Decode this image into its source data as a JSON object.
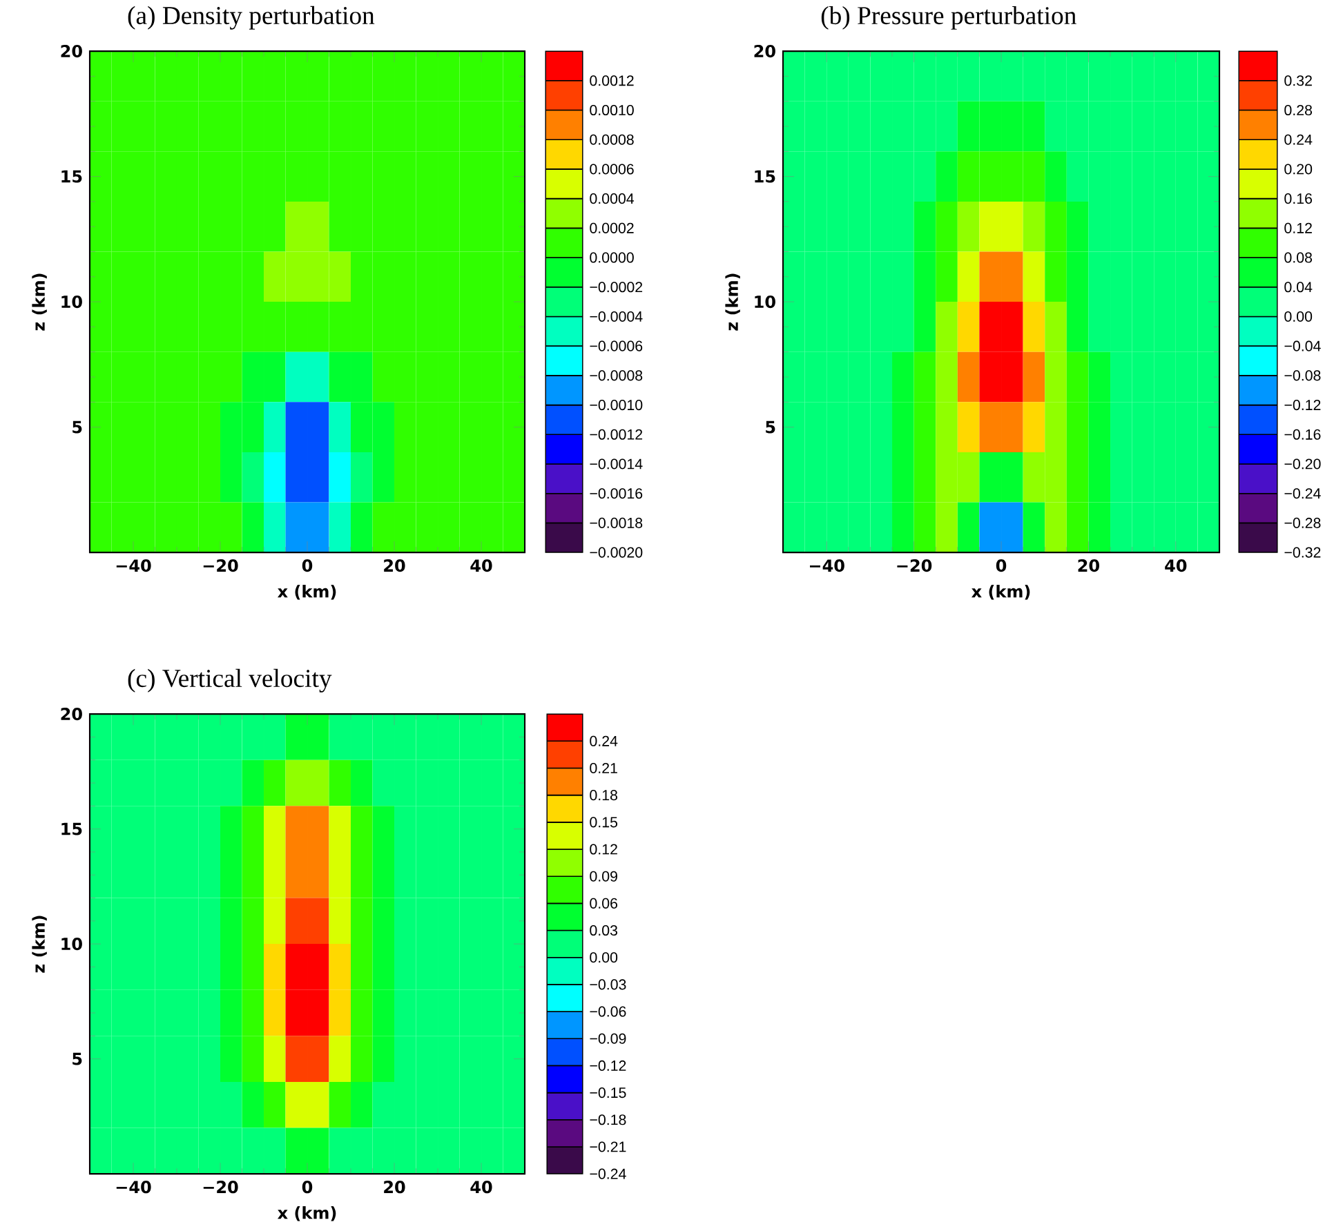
{
  "chart_data": [
    {
      "type": "heatmap",
      "title": "(a)    Density perturbation",
      "xlabel": "x (km)",
      "ylabel": "z (km)",
      "xlim": [
        -50,
        50
      ],
      "ylim": [
        0,
        20
      ],
      "xticks": [
        {
          "value": -40,
          "label": "−40"
        },
        {
          "value": -20,
          "label": "−20"
        },
        {
          "value": 0,
          "label": "0"
        },
        {
          "value": 20,
          "label": "20"
        },
        {
          "value": 40,
          "label": "40"
        }
      ],
      "yticks": [
        {
          "value": 5,
          "label": "5"
        },
        {
          "value": 10,
          "label": "10"
        },
        {
          "value": 15,
          "label": "15"
        },
        {
          "value": 20,
          "label": "20"
        }
      ],
      "clim": [
        -0.002,
        0.0014
      ],
      "cticks": [
        {
          "value": -0.002,
          "label": "−0.0020"
        },
        {
          "value": -0.0018,
          "label": "−0.0018"
        },
        {
          "value": -0.0016,
          "label": "−0.0016"
        },
        {
          "value": -0.0014,
          "label": "−0.0014"
        },
        {
          "value": -0.0012,
          "label": "−0.0012"
        },
        {
          "value": -0.001,
          "label": "−0.0010"
        },
        {
          "value": -0.0008,
          "label": "−0.0008"
        },
        {
          "value": -0.0006,
          "label": "−0.0006"
        },
        {
          "value": -0.0004,
          "label": "−0.0004"
        },
        {
          "value": -0.0002,
          "label": "−0.0002"
        },
        {
          "value": 0,
          "label": "0.0000"
        },
        {
          "value": 0.0002,
          "label": "0.0002"
        },
        {
          "value": 0.0004,
          "label": "0.0004"
        },
        {
          "value": 0.0006,
          "label": "0.0006"
        },
        {
          "value": 0.0008,
          "label": "0.0008"
        },
        {
          "value": 0.001,
          "label": "0.0010"
        },
        {
          "value": 0.0012,
          "label": "0.0012"
        }
      ],
      "colors": [
        "#3a0a4a",
        "#5a0a80",
        "#4a10c8",
        "#0000ff",
        "#0050ff",
        "#0096ff",
        "#00ffff",
        "#00ffc0",
        "#00ff78",
        "#00ff30",
        "#30ff00",
        "#90ff00",
        "#d8ff00",
        "#ffd800",
        "#ff8000",
        "#ff4000",
        "#ff0000"
      ],
      "cells": [
        [
          0.0001,
          0.0001,
          0.0001,
          0.0001,
          0.0001,
          0.0001,
          0.0001,
          0.0001,
          0.0001,
          0.0001,
          0.0001,
          0.0001,
          0.0001,
          0.0001,
          0.0001,
          0.0001,
          0.0001,
          0.0001,
          0.0001,
          0.0001
        ],
        [
          0.0001,
          0.0001,
          0.0001,
          0.0001,
          0.0001,
          0.0001,
          0.0001,
          0.0001,
          0.0001,
          0.0001,
          0.0001,
          0.0001,
          0.0001,
          0.0001,
          0.0001,
          0.0001,
          0.0001,
          0.0001,
          0.0001,
          0.0001
        ],
        [
          0.0001,
          0.0001,
          0.0001,
          0.0001,
          0.0001,
          0.0001,
          0.0001,
          0.0001,
          0.0001,
          0.0001,
          0.0001,
          0.0001,
          0.0001,
          0.0001,
          0.0001,
          0.0001,
          0.0001,
          0.0001,
          0.0001,
          0.0001
        ],
        [
          0.0001,
          0.0001,
          0.0001,
          0.0001,
          0.0001,
          0.0001,
          0.0001,
          0.0001,
          0.0001,
          0.0003,
          0.0003,
          0.0001,
          0.0001,
          0.0001,
          0.0001,
          0.0001,
          0.0001,
          0.0001,
          0.0001,
          0.0001
        ],
        [
          0.0001,
          0.0001,
          0.0001,
          0.0001,
          0.0001,
          0.0001,
          0.0001,
          0.0001,
          0.0003,
          0.0003,
          0.0003,
          0.0003,
          0.0001,
          0.0001,
          0.0001,
          0.0001,
          0.0001,
          0.0001,
          0.0001,
          0.0001
        ],
        [
          0.0001,
          0.0001,
          0.0001,
          0.0001,
          0.0001,
          0.0001,
          0.0001,
          0.0001,
          0.0001,
          0.0001,
          0.0001,
          0.0001,
          0.0001,
          0.0001,
          0.0001,
          0.0001,
          0.0001,
          0.0001,
          0.0001,
          0.0001
        ],
        [
          0.0001,
          0.0001,
          0.0001,
          0.0001,
          0.0001,
          0.0001,
          0.0001,
          -0.0001,
          -0.0001,
          -0.0005,
          -0.0005,
          -0.0001,
          -0.0001,
          0.0001,
          0.0001,
          0.0001,
          0.0001,
          0.0001,
          0.0001,
          0.0001
        ],
        [
          0.0001,
          0.0001,
          0.0001,
          0.0001,
          0.0001,
          0.0001,
          -0.0001,
          -0.0001,
          -0.0005,
          -0.0011,
          -0.0011,
          -0.0005,
          -0.0001,
          -0.0001,
          0.0001,
          0.0001,
          0.0001,
          0.0001,
          0.0001,
          0.0001
        ],
        [
          0.0001,
          0.0001,
          0.0001,
          0.0001,
          0.0001,
          0.0001,
          -0.0001,
          -0.0003,
          -0.0007,
          -0.0011,
          -0.0011,
          -0.0007,
          -0.0003,
          -0.0001,
          0.0001,
          0.0001,
          0.0001,
          0.0001,
          0.0001,
          0.0001
        ],
        [
          0.0001,
          0.0001,
          0.0001,
          0.0001,
          0.0001,
          0.0001,
          0.0001,
          -0.0001,
          -0.0005,
          -0.0009,
          -0.0009,
          -0.0005,
          -0.0001,
          0.0001,
          0.0001,
          0.0001,
          0.0001,
          0.0001,
          0.0001,
          0.0001
        ]
      ]
    },
    {
      "type": "heatmap",
      "title": "(b)    Pressure perturbation",
      "xlabel": "x (km)",
      "ylabel": "z (km)",
      "xlim": [
        -50,
        50
      ],
      "ylim": [
        0,
        20
      ],
      "xticks": [
        {
          "value": -40,
          "label": "−40"
        },
        {
          "value": -20,
          "label": "−20"
        },
        {
          "value": 0,
          "label": "0"
        },
        {
          "value": 20,
          "label": "20"
        },
        {
          "value": 40,
          "label": "40"
        }
      ],
      "yticks": [
        {
          "value": 5,
          "label": "5"
        },
        {
          "value": 10,
          "label": "10"
        },
        {
          "value": 15,
          "label": "15"
        },
        {
          "value": 20,
          "label": "20"
        }
      ],
      "clim": [
        -0.32,
        0.36
      ],
      "cticks": [
        {
          "value": -0.32,
          "label": "−0.32"
        },
        {
          "value": -0.28,
          "label": "−0.28"
        },
        {
          "value": -0.24,
          "label": "−0.24"
        },
        {
          "value": -0.2,
          "label": "−0.20"
        },
        {
          "value": -0.16,
          "label": "−0.16"
        },
        {
          "value": -0.12,
          "label": "−0.12"
        },
        {
          "value": -0.08,
          "label": "−0.08"
        },
        {
          "value": -0.04,
          "label": "−0.04"
        },
        {
          "value": 0,
          "label": "0.00"
        },
        {
          "value": 0.04,
          "label": "0.04"
        },
        {
          "value": 0.08,
          "label": "0.08"
        },
        {
          "value": 0.12,
          "label": "0.12"
        },
        {
          "value": 0.16,
          "label": "0.16"
        },
        {
          "value": 0.2,
          "label": "0.20"
        },
        {
          "value": 0.24,
          "label": "0.24"
        },
        {
          "value": 0.28,
          "label": "0.28"
        },
        {
          "value": 0.32,
          "label": "0.32"
        }
      ],
      "colors": [
        "#3a0a4a",
        "#5a0a80",
        "#4a10c8",
        "#0000ff",
        "#0050ff",
        "#0096ff",
        "#00ffff",
        "#00ffc0",
        "#00ff78",
        "#00ff30",
        "#30ff00",
        "#90ff00",
        "#d8ff00",
        "#ffd800",
        "#ff8000",
        "#ff4000",
        "#ff0000"
      ],
      "cells": [
        [
          0.02,
          0.02,
          0.02,
          0.02,
          0.02,
          0.02,
          0.02,
          0.02,
          0.02,
          0.02,
          0.02,
          0.02,
          0.02,
          0.02,
          0.02,
          0.02,
          0.02,
          0.02,
          0.02,
          0.02
        ],
        [
          0.02,
          0.02,
          0.02,
          0.02,
          0.02,
          0.02,
          0.02,
          0.02,
          0.06,
          0.06,
          0.06,
          0.06,
          0.02,
          0.02,
          0.02,
          0.02,
          0.02,
          0.02,
          0.02,
          0.02
        ],
        [
          0.02,
          0.02,
          0.02,
          0.02,
          0.02,
          0.02,
          0.02,
          0.06,
          0.1,
          0.1,
          0.1,
          0.1,
          0.06,
          0.02,
          0.02,
          0.02,
          0.02,
          0.02,
          0.02,
          0.02
        ],
        [
          0.02,
          0.02,
          0.02,
          0.02,
          0.02,
          0.02,
          0.06,
          0.1,
          0.14,
          0.18,
          0.18,
          0.14,
          0.1,
          0.06,
          0.02,
          0.02,
          0.02,
          0.02,
          0.02,
          0.02
        ],
        [
          0.02,
          0.02,
          0.02,
          0.02,
          0.02,
          0.02,
          0.06,
          0.1,
          0.18,
          0.26,
          0.26,
          0.18,
          0.1,
          0.06,
          0.02,
          0.02,
          0.02,
          0.02,
          0.02,
          0.02
        ],
        [
          0.02,
          0.02,
          0.02,
          0.02,
          0.02,
          0.02,
          0.06,
          0.14,
          0.22,
          0.34,
          0.34,
          0.22,
          0.14,
          0.06,
          0.02,
          0.02,
          0.02,
          0.02,
          0.02,
          0.02
        ],
        [
          0.02,
          0.02,
          0.02,
          0.02,
          0.02,
          0.06,
          0.1,
          0.14,
          0.26,
          0.34,
          0.34,
          0.26,
          0.14,
          0.1,
          0.06,
          0.02,
          0.02,
          0.02,
          0.02,
          0.02
        ],
        [
          0.02,
          0.02,
          0.02,
          0.02,
          0.02,
          0.06,
          0.1,
          0.14,
          0.22,
          0.26,
          0.26,
          0.22,
          0.14,
          0.1,
          0.06,
          0.02,
          0.02,
          0.02,
          0.02,
          0.02
        ],
        [
          0.02,
          0.02,
          0.02,
          0.02,
          0.02,
          0.06,
          0.1,
          0.14,
          0.14,
          0.06,
          0.06,
          0.14,
          0.14,
          0.1,
          0.06,
          0.02,
          0.02,
          0.02,
          0.02,
          0.02
        ],
        [
          0.02,
          0.02,
          0.02,
          0.02,
          0.02,
          0.06,
          0.1,
          0.14,
          0.06,
          -0.1,
          -0.1,
          0.06,
          0.14,
          0.1,
          0.06,
          0.02,
          0.02,
          0.02,
          0.02,
          0.02
        ]
      ]
    },
    {
      "type": "heatmap",
      "title": "(c)    Vertical velocity",
      "xlabel": "x (km)",
      "ylabel": "z (km)",
      "xlim": [
        -50,
        50
      ],
      "ylim": [
        0,
        20
      ],
      "xticks": [
        {
          "value": -40,
          "label": "−40"
        },
        {
          "value": -20,
          "label": "−20"
        },
        {
          "value": 0,
          "label": "0"
        },
        {
          "value": 20,
          "label": "20"
        },
        {
          "value": 40,
          "label": "40"
        }
      ],
      "yticks": [
        {
          "value": 5,
          "label": "5"
        },
        {
          "value": 10,
          "label": "10"
        },
        {
          "value": 15,
          "label": "15"
        },
        {
          "value": 20,
          "label": "20"
        }
      ],
      "clim": [
        -0.24,
        0.27
      ],
      "cticks": [
        {
          "value": -0.24,
          "label": "−0.24"
        },
        {
          "value": -0.21,
          "label": "−0.21"
        },
        {
          "value": -0.18,
          "label": "−0.18"
        },
        {
          "value": -0.15,
          "label": "−0.15"
        },
        {
          "value": -0.12,
          "label": "−0.12"
        },
        {
          "value": -0.09,
          "label": "−0.09"
        },
        {
          "value": -0.06,
          "label": "−0.06"
        },
        {
          "value": -0.03,
          "label": "−0.03"
        },
        {
          "value": 0,
          "label": "0.00"
        },
        {
          "value": 0.03,
          "label": "0.03"
        },
        {
          "value": 0.06,
          "label": "0.06"
        },
        {
          "value": 0.09,
          "label": "0.09"
        },
        {
          "value": 0.12,
          "label": "0.12"
        },
        {
          "value": 0.15,
          "label": "0.15"
        },
        {
          "value": 0.18,
          "label": "0.18"
        },
        {
          "value": 0.21,
          "label": "0.21"
        },
        {
          "value": 0.24,
          "label": "0.24"
        }
      ],
      "colors": [
        "#3a0a4a",
        "#5a0a80",
        "#4a10c8",
        "#0000ff",
        "#0050ff",
        "#0096ff",
        "#00ffff",
        "#00ffc0",
        "#00ff78",
        "#00ff30",
        "#30ff00",
        "#90ff00",
        "#d8ff00",
        "#ffd800",
        "#ff8000",
        "#ff4000",
        "#ff0000"
      ],
      "cells": [
        [
          0.015,
          0.015,
          0.015,
          0.015,
          0.015,
          0.015,
          0.015,
          0.015,
          0.015,
          0.045,
          0.045,
          0.015,
          0.015,
          0.015,
          0.015,
          0.015,
          0.015,
          0.015,
          0.015,
          0.015
        ],
        [
          0.015,
          0.015,
          0.015,
          0.015,
          0.015,
          0.015,
          0.015,
          0.045,
          0.075,
          0.105,
          0.105,
          0.075,
          0.045,
          0.015,
          0.015,
          0.015,
          0.015,
          0.015,
          0.015,
          0.015
        ],
        [
          0.015,
          0.015,
          0.015,
          0.015,
          0.015,
          0.015,
          0.045,
          0.075,
          0.135,
          0.195,
          0.195,
          0.135,
          0.075,
          0.045,
          0.015,
          0.015,
          0.015,
          0.015,
          0.015,
          0.015
        ],
        [
          0.015,
          0.015,
          0.015,
          0.015,
          0.015,
          0.015,
          0.045,
          0.075,
          0.135,
          0.195,
          0.195,
          0.135,
          0.075,
          0.045,
          0.015,
          0.015,
          0.015,
          0.015,
          0.015,
          0.015
        ],
        [
          0.015,
          0.015,
          0.015,
          0.015,
          0.015,
          0.015,
          0.045,
          0.075,
          0.135,
          0.225,
          0.225,
          0.135,
          0.075,
          0.045,
          0.015,
          0.015,
          0.015,
          0.015,
          0.015,
          0.015
        ],
        [
          0.015,
          0.015,
          0.015,
          0.015,
          0.015,
          0.015,
          0.045,
          0.075,
          0.165,
          0.255,
          0.255,
          0.165,
          0.075,
          0.045,
          0.015,
          0.015,
          0.015,
          0.015,
          0.015,
          0.015
        ],
        [
          0.015,
          0.015,
          0.015,
          0.015,
          0.015,
          0.015,
          0.045,
          0.075,
          0.165,
          0.255,
          0.255,
          0.165,
          0.075,
          0.045,
          0.015,
          0.015,
          0.015,
          0.015,
          0.015,
          0.015
        ],
        [
          0.015,
          0.015,
          0.015,
          0.015,
          0.015,
          0.015,
          0.045,
          0.075,
          0.135,
          0.225,
          0.225,
          0.135,
          0.075,
          0.045,
          0.015,
          0.015,
          0.015,
          0.015,
          0.015,
          0.015
        ],
        [
          0.015,
          0.015,
          0.015,
          0.015,
          0.015,
          0.015,
          0.015,
          0.045,
          0.075,
          0.135,
          0.135,
          0.075,
          0.045,
          0.015,
          0.015,
          0.015,
          0.015,
          0.015,
          0.015,
          0.015
        ],
        [
          0.015,
          0.015,
          0.015,
          0.015,
          0.015,
          0.015,
          0.015,
          0.015,
          0.015,
          0.045,
          0.045,
          0.015,
          0.015,
          0.015,
          0.015,
          0.015,
          0.015,
          0.015,
          0.015,
          0.015
        ]
      ]
    }
  ]
}
